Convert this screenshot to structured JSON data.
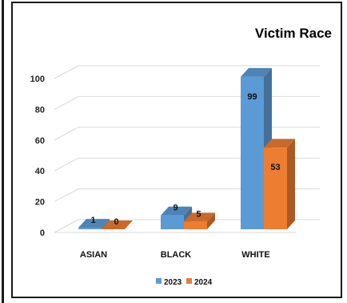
{
  "colors": {
    "s2023": "#5b9bd5",
    "s2024": "#ed7d31",
    "grid": "#d9d9d9",
    "frame": "#1a1a1a"
  },
  "chart_data": {
    "type": "bar",
    "title": "Victim Race",
    "categories": [
      "ASIAN",
      "BLACK",
      "WHITE"
    ],
    "series": [
      {
        "name": "2023",
        "values": [
          1,
          9,
          99
        ]
      },
      {
        "name": "2024",
        "values": [
          0,
          5,
          53
        ]
      }
    ],
    "ylim": [
      0,
      100
    ],
    "yticks": [
      0,
      20,
      40,
      60,
      80,
      100
    ],
    "grid": true,
    "legend": "bottom",
    "xlabel": "",
    "ylabel": ""
  }
}
